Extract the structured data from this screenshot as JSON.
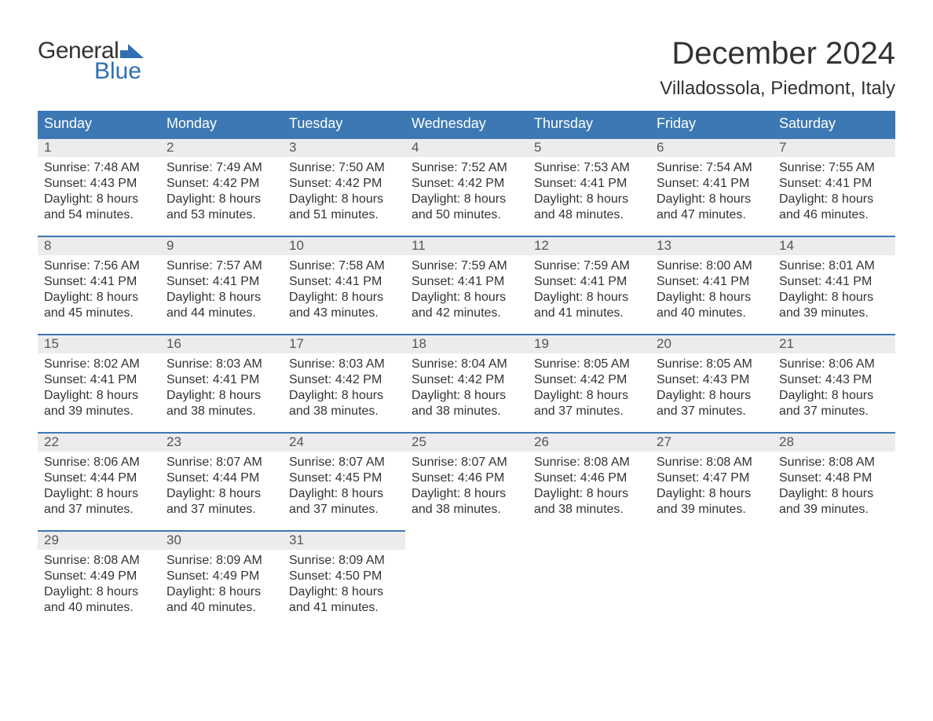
{
  "logo": {
    "text1": "General",
    "text2": "Blue"
  },
  "title": "December 2024",
  "location": "Villadossola, Piedmont, Italy",
  "colors": {
    "header_bg": "#3c78b4",
    "header_text": "#ffffff",
    "daynum_bg": "#ececec",
    "daynum_border": "#3c78b4",
    "body_text": "#333333",
    "logo_blue": "#2f6fb2"
  },
  "weekdays": [
    "Sunday",
    "Monday",
    "Tuesday",
    "Wednesday",
    "Thursday",
    "Friday",
    "Saturday"
  ],
  "labels": {
    "sunrise": "Sunrise:",
    "sunset": "Sunset:",
    "daylight": "Daylight:"
  },
  "weeks": [
    [
      {
        "n": "1",
        "sunrise": "7:48 AM",
        "sunset": "4:43 PM",
        "daylight": "8 hours and 54 minutes."
      },
      {
        "n": "2",
        "sunrise": "7:49 AM",
        "sunset": "4:42 PM",
        "daylight": "8 hours and 53 minutes."
      },
      {
        "n": "3",
        "sunrise": "7:50 AM",
        "sunset": "4:42 PM",
        "daylight": "8 hours and 51 minutes."
      },
      {
        "n": "4",
        "sunrise": "7:52 AM",
        "sunset": "4:42 PM",
        "daylight": "8 hours and 50 minutes."
      },
      {
        "n": "5",
        "sunrise": "7:53 AM",
        "sunset": "4:41 PM",
        "daylight": "8 hours and 48 minutes."
      },
      {
        "n": "6",
        "sunrise": "7:54 AM",
        "sunset": "4:41 PM",
        "daylight": "8 hours and 47 minutes."
      },
      {
        "n": "7",
        "sunrise": "7:55 AM",
        "sunset": "4:41 PM",
        "daylight": "8 hours and 46 minutes."
      }
    ],
    [
      {
        "n": "8",
        "sunrise": "7:56 AM",
        "sunset": "4:41 PM",
        "daylight": "8 hours and 45 minutes."
      },
      {
        "n": "9",
        "sunrise": "7:57 AM",
        "sunset": "4:41 PM",
        "daylight": "8 hours and 44 minutes."
      },
      {
        "n": "10",
        "sunrise": "7:58 AM",
        "sunset": "4:41 PM",
        "daylight": "8 hours and 43 minutes."
      },
      {
        "n": "11",
        "sunrise": "7:59 AM",
        "sunset": "4:41 PM",
        "daylight": "8 hours and 42 minutes."
      },
      {
        "n": "12",
        "sunrise": "7:59 AM",
        "sunset": "4:41 PM",
        "daylight": "8 hours and 41 minutes."
      },
      {
        "n": "13",
        "sunrise": "8:00 AM",
        "sunset": "4:41 PM",
        "daylight": "8 hours and 40 minutes."
      },
      {
        "n": "14",
        "sunrise": "8:01 AM",
        "sunset": "4:41 PM",
        "daylight": "8 hours and 39 minutes."
      }
    ],
    [
      {
        "n": "15",
        "sunrise": "8:02 AM",
        "sunset": "4:41 PM",
        "daylight": "8 hours and 39 minutes."
      },
      {
        "n": "16",
        "sunrise": "8:03 AM",
        "sunset": "4:41 PM",
        "daylight": "8 hours and 38 minutes."
      },
      {
        "n": "17",
        "sunrise": "8:03 AM",
        "sunset": "4:42 PM",
        "daylight": "8 hours and 38 minutes."
      },
      {
        "n": "18",
        "sunrise": "8:04 AM",
        "sunset": "4:42 PM",
        "daylight": "8 hours and 38 minutes."
      },
      {
        "n": "19",
        "sunrise": "8:05 AM",
        "sunset": "4:42 PM",
        "daylight": "8 hours and 37 minutes."
      },
      {
        "n": "20",
        "sunrise": "8:05 AM",
        "sunset": "4:43 PM",
        "daylight": "8 hours and 37 minutes."
      },
      {
        "n": "21",
        "sunrise": "8:06 AM",
        "sunset": "4:43 PM",
        "daylight": "8 hours and 37 minutes."
      }
    ],
    [
      {
        "n": "22",
        "sunrise": "8:06 AM",
        "sunset": "4:44 PM",
        "daylight": "8 hours and 37 minutes."
      },
      {
        "n": "23",
        "sunrise": "8:07 AM",
        "sunset": "4:44 PM",
        "daylight": "8 hours and 37 minutes."
      },
      {
        "n": "24",
        "sunrise": "8:07 AM",
        "sunset": "4:45 PM",
        "daylight": "8 hours and 37 minutes."
      },
      {
        "n": "25",
        "sunrise": "8:07 AM",
        "sunset": "4:46 PM",
        "daylight": "8 hours and 38 minutes."
      },
      {
        "n": "26",
        "sunrise": "8:08 AM",
        "sunset": "4:46 PM",
        "daylight": "8 hours and 38 minutes."
      },
      {
        "n": "27",
        "sunrise": "8:08 AM",
        "sunset": "4:47 PM",
        "daylight": "8 hours and 39 minutes."
      },
      {
        "n": "28",
        "sunrise": "8:08 AM",
        "sunset": "4:48 PM",
        "daylight": "8 hours and 39 minutes."
      }
    ],
    [
      {
        "n": "29",
        "sunrise": "8:08 AM",
        "sunset": "4:49 PM",
        "daylight": "8 hours and 40 minutes."
      },
      {
        "n": "30",
        "sunrise": "8:09 AM",
        "sunset": "4:49 PM",
        "daylight": "8 hours and 40 minutes."
      },
      {
        "n": "31",
        "sunrise": "8:09 AM",
        "sunset": "4:50 PM",
        "daylight": "8 hours and 41 minutes."
      },
      null,
      null,
      null,
      null
    ]
  ]
}
